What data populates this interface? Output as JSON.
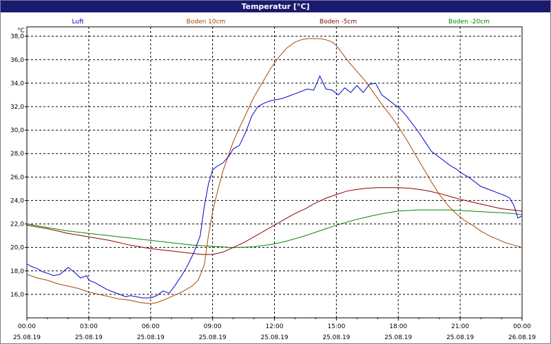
{
  "window": {
    "title": "Temperatur [°C]"
  },
  "colors": {
    "titlebar_bg": "#1a1a6e",
    "grid": "#000000"
  },
  "chart_data": {
    "type": "line",
    "title": "Temperatur [°C]",
    "ylabel": "°C",
    "ylim": [
      14.0,
      38.8
    ],
    "xlim_hours": [
      0,
      24
    ],
    "grid": true,
    "legend_placement": "top",
    "y_ticks": [
      "38,0",
      "36,0",
      "34,0",
      "32,0",
      "30,0",
      "28,0",
      "26,0",
      "24,0",
      "22,0",
      "20,0",
      "18,0",
      "16,0"
    ],
    "y_tick_values": [
      38,
      36,
      34,
      32,
      30,
      28,
      26,
      24,
      22,
      20,
      18,
      16
    ],
    "x_ticks": [
      {
        "time": "00:00",
        "date": "25.08.19"
      },
      {
        "time": "03:00",
        "date": "25.08.19"
      },
      {
        "time": "06:00",
        "date": "25.08.19"
      },
      {
        "time": "09:00",
        "date": "25.08.19"
      },
      {
        "time": "12:00",
        "date": "25.08.19"
      },
      {
        "time": "15:00",
        "date": "25.08.19"
      },
      {
        "time": "18:00",
        "date": "25.08.19"
      },
      {
        "time": "21:00",
        "date": "25.08.19"
      },
      {
        "time": "00:00",
        "date": "26.08.19"
      }
    ],
    "series": [
      {
        "name": "Luft",
        "color": "#0000cc",
        "x": [
          0,
          0.2,
          0.5,
          0.8,
          1.0,
          1.3,
          1.6,
          2.0,
          2.3,
          2.6,
          2.9,
          3.0,
          3.3,
          3.6,
          3.9,
          4.2,
          4.5,
          4.8,
          5.0,
          5.3,
          5.6,
          6.0,
          6.3,
          6.6,
          6.9,
          7.2,
          7.5,
          7.8,
          8.1,
          8.4,
          8.6,
          8.8,
          9.0,
          9.2,
          9.5,
          9.8,
          10.0,
          10.3,
          10.6,
          10.9,
          11.2,
          11.5,
          11.8,
          12.1,
          12.4,
          12.7,
          13.0,
          13.3,
          13.6,
          13.9,
          14.2,
          14.5,
          14.8,
          15.1,
          15.4,
          15.7,
          16.0,
          16.3,
          16.6,
          16.9,
          17.2,
          17.5,
          17.8,
          18.1,
          18.4,
          18.7,
          19.0,
          19.3,
          19.6,
          19.9,
          20.2,
          20.5,
          20.8,
          21.1,
          21.4,
          21.7,
          22.0,
          22.3,
          22.6,
          22.9,
          23.2,
          23.4,
          23.6,
          23.8,
          24.0
        ],
        "values": [
          18.6,
          18.4,
          18.2,
          17.9,
          17.8,
          17.6,
          17.7,
          18.3,
          17.9,
          17.4,
          17.6,
          17.2,
          17.0,
          16.7,
          16.4,
          16.2,
          16.0,
          15.8,
          15.9,
          15.8,
          15.7,
          15.7,
          15.9,
          16.3,
          16.1,
          16.8,
          17.6,
          18.5,
          19.6,
          21.0,
          23.5,
          25.4,
          26.6,
          26.9,
          27.2,
          27.8,
          28.4,
          28.7,
          29.8,
          31.2,
          32.0,
          32.3,
          32.5,
          32.6,
          32.7,
          32.9,
          33.1,
          33.3,
          33.5,
          33.4,
          34.6,
          33.5,
          33.4,
          33.0,
          33.6,
          33.2,
          33.8,
          33.2,
          33.9,
          34.0,
          33.0,
          32.6,
          32.2,
          31.8,
          31.2,
          30.5,
          29.8,
          29.0,
          28.2,
          27.8,
          27.4,
          27.0,
          26.7,
          26.3,
          26.0,
          25.6,
          25.2,
          25.0,
          24.8,
          24.6,
          24.4,
          24.2,
          23.6,
          22.5,
          22.7
        ]
      },
      {
        "name": "Boden 10cm",
        "color": "#aa4400",
        "x": [
          0,
          0.5,
          1.0,
          1.5,
          2.0,
          2.5,
          3.0,
          3.5,
          4.0,
          4.5,
          5.0,
          5.5,
          6.0,
          6.3,
          6.6,
          7.0,
          7.5,
          8.0,
          8.3,
          8.6,
          8.8,
          9.0,
          9.2,
          9.5,
          9.8,
          10.0,
          10.3,
          10.6,
          11.0,
          11.4,
          11.8,
          12.2,
          12.6,
          13.0,
          13.3,
          13.6,
          13.9,
          14.2,
          14.5,
          14.8,
          15.0,
          15.3,
          15.6,
          16.0,
          16.4,
          16.8,
          17.2,
          17.6,
          18.0,
          18.4,
          18.8,
          19.2,
          19.6,
          20.0,
          20.4,
          20.8,
          21.2,
          21.6,
          22.0,
          22.4,
          22.8,
          23.2,
          23.6,
          24.0
        ],
        "values": [
          17.7,
          17.4,
          17.2,
          16.9,
          16.7,
          16.5,
          16.2,
          16.0,
          15.8,
          15.6,
          15.5,
          15.3,
          15.2,
          15.3,
          15.5,
          15.8,
          16.2,
          16.7,
          17.2,
          18.5,
          21.0,
          23.0,
          24.5,
          26.5,
          28.0,
          29.0,
          30.2,
          31.3,
          32.8,
          34.0,
          35.2,
          36.2,
          37.0,
          37.5,
          37.7,
          37.8,
          37.8,
          37.8,
          37.7,
          37.5,
          37.2,
          36.5,
          35.8,
          35.0,
          34.2,
          33.2,
          32.2,
          31.3,
          30.3,
          29.2,
          28.0,
          26.8,
          25.6,
          24.5,
          23.6,
          22.9,
          22.3,
          21.9,
          21.4,
          21.0,
          20.7,
          20.4,
          20.2,
          20.0
        ]
      },
      {
        "name": "Boden -5cm",
        "color": "#880000",
        "x": [
          0,
          1.0,
          2.0,
          3.0,
          4.0,
          5.0,
          6.0,
          7.0,
          8.0,
          8.5,
          9.0,
          9.5,
          10.0,
          10.5,
          11.0,
          11.5,
          12.0,
          12.5,
          13.0,
          13.5,
          14.0,
          14.5,
          15.0,
          15.5,
          16.0,
          16.5,
          17.0,
          17.5,
          18.0,
          18.5,
          19.0,
          19.5,
          20.0,
          20.5,
          21.0,
          21.5,
          22.0,
          22.5,
          23.0,
          23.5,
          24.0
        ],
        "values": [
          21.9,
          21.6,
          21.2,
          20.9,
          20.6,
          20.2,
          19.9,
          19.7,
          19.5,
          19.4,
          19.4,
          19.6,
          20.0,
          20.4,
          20.9,
          21.4,
          21.9,
          22.4,
          22.9,
          23.3,
          23.8,
          24.2,
          24.5,
          24.8,
          24.95,
          25.05,
          25.1,
          25.1,
          25.1,
          25.05,
          24.95,
          24.8,
          24.6,
          24.35,
          24.1,
          23.9,
          23.7,
          23.5,
          23.3,
          23.2,
          23.1
        ]
      },
      {
        "name": "Boden -20cm",
        "color": "#008800",
        "x": [
          0,
          1.0,
          2.0,
          3.0,
          4.0,
          5.0,
          6.0,
          7.0,
          8.0,
          9.0,
          10.0,
          11.0,
          12.0,
          12.5,
          13.0,
          13.5,
          14.0,
          14.5,
          15.0,
          15.5,
          16.0,
          16.5,
          17.0,
          17.5,
          18.0,
          18.5,
          19.0,
          19.5,
          20.0,
          20.5,
          21.0,
          21.5,
          22.0,
          22.5,
          23.0,
          23.5,
          24.0
        ],
        "values": [
          22.0,
          21.7,
          21.4,
          21.2,
          21.0,
          20.8,
          20.6,
          20.4,
          20.2,
          20.1,
          20.0,
          20.05,
          20.3,
          20.5,
          20.75,
          21.0,
          21.3,
          21.6,
          21.9,
          22.15,
          22.4,
          22.6,
          22.8,
          22.95,
          23.1,
          23.15,
          23.2,
          23.2,
          23.2,
          23.2,
          23.15,
          23.1,
          23.05,
          23.0,
          22.95,
          22.9,
          22.8
        ]
      }
    ]
  }
}
